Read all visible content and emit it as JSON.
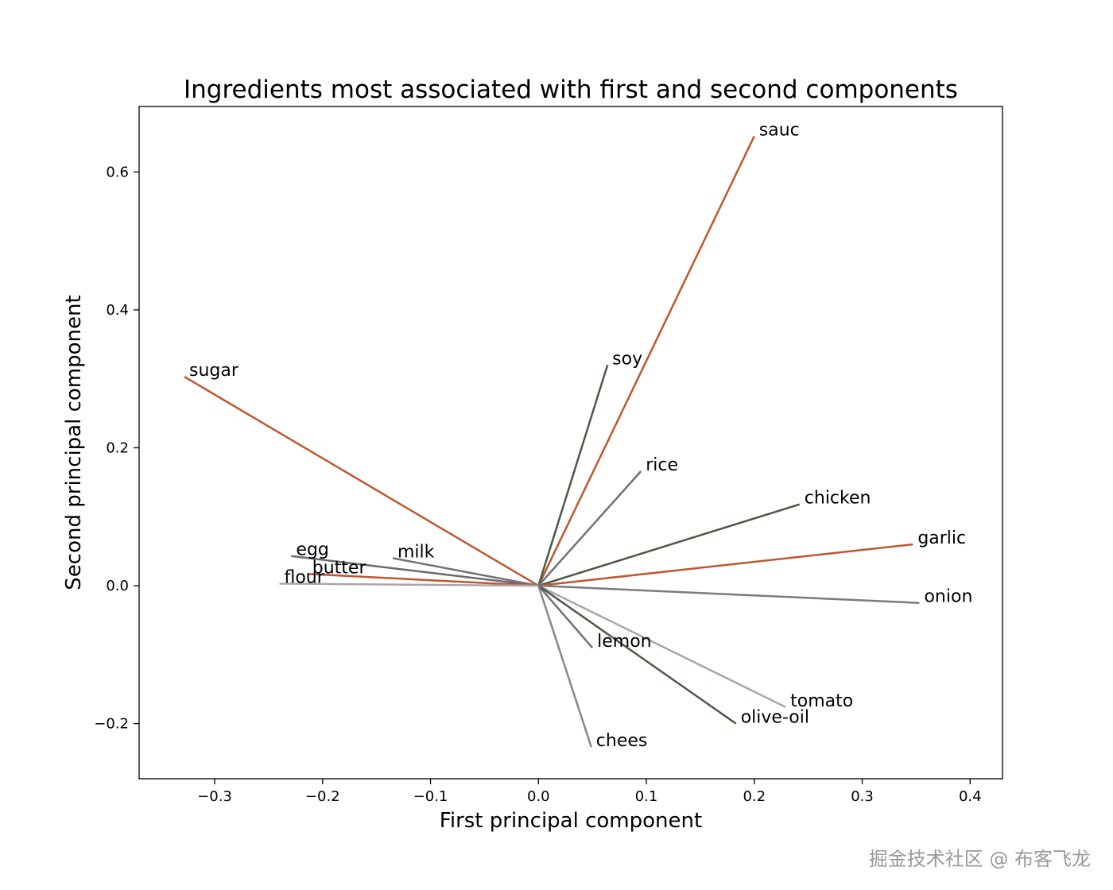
{
  "chart_data": {
    "type": "line",
    "title": "Ingredients most associated with first and second components",
    "xlabel": "First principal component",
    "ylabel": "Second principal component",
    "xlim": [
      -0.37,
      0.43
    ],
    "ylim": [
      -0.28,
      0.695
    ],
    "xticks": [
      -0.3,
      -0.2,
      -0.1,
      0.0,
      0.1,
      0.2,
      0.3,
      0.4
    ],
    "xtick_labels": [
      "−0.3",
      "−0.2",
      "−0.1",
      "0.0",
      "0.1",
      "0.2",
      "0.3",
      "0.4"
    ],
    "yticks": [
      -0.2,
      0.0,
      0.2,
      0.4,
      0.6
    ],
    "ytick_labels": [
      "−0.2",
      "0.0",
      "0.2",
      "0.4",
      "0.6"
    ],
    "origin": [
      0,
      0
    ],
    "vectors": [
      {
        "name": "sauc",
        "x": 0.2,
        "y": 0.652,
        "color": "#c0562d"
      },
      {
        "name": "soy",
        "x": 0.064,
        "y": 0.32,
        "color": "#4a5a45"
      },
      {
        "name": "sugar",
        "x": -0.328,
        "y": 0.303,
        "color": "#c0562d"
      },
      {
        "name": "rice",
        "x": 0.095,
        "y": 0.166,
        "color": "#707078"
      },
      {
        "name": "chicken",
        "x": 0.242,
        "y": 0.118,
        "color": "#4a5a45"
      },
      {
        "name": "garlic",
        "x": 0.347,
        "y": 0.06,
        "color": "#c0562d"
      },
      {
        "name": "egg",
        "x": -0.229,
        "y": 0.043,
        "color": "#6a6a72"
      },
      {
        "name": "milk",
        "x": -0.135,
        "y": 0.04,
        "color": "#707078"
      },
      {
        "name": "butter",
        "x": -0.214,
        "y": 0.017,
        "color": "#c0562d"
      },
      {
        "name": "flour",
        "x": -0.24,
        "y": 0.003,
        "color": "#b0a2aa"
      },
      {
        "name": "onion",
        "x": 0.353,
        "y": -0.025,
        "color": "#7a7a82"
      },
      {
        "name": "lemon",
        "x": 0.05,
        "y": -0.09,
        "color": "#707078"
      },
      {
        "name": "tomato",
        "x": 0.229,
        "y": -0.176,
        "color": "#b0a2aa"
      },
      {
        "name": "olive-oil",
        "x": 0.183,
        "y": -0.2,
        "color": "#4a5a45"
      },
      {
        "name": "chees",
        "x": 0.049,
        "y": -0.234,
        "color": "#858590"
      }
    ]
  },
  "watermark": "掘金技术社区 @ 布客飞龙"
}
